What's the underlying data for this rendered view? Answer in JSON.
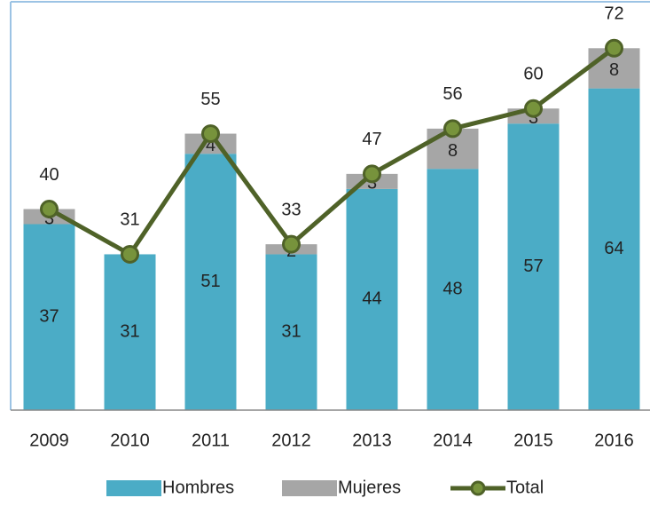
{
  "chart_data": {
    "type": "stacked_bar_line",
    "categories": [
      "2009",
      "2010",
      "2011",
      "2012",
      "2013",
      "2014",
      "2015",
      "2016"
    ],
    "series": [
      {
        "name": "Hombres",
        "color": "#4bacc6",
        "values": [
          37,
          31,
          51,
          31,
          44,
          48,
          57,
          64
        ]
      },
      {
        "name": "Mujeres",
        "color": "#a6a6a6",
        "values": [
          3,
          0,
          4,
          2,
          3,
          8,
          3,
          8
        ]
      },
      {
        "name": "Total",
        "color": "#4f6228",
        "marker_color": "#77933c",
        "values": [
          40,
          31,
          55,
          33,
          47,
          56,
          60,
          72
        ]
      }
    ],
    "ylim": [
      0,
      80
    ],
    "legend": "bottom"
  }
}
